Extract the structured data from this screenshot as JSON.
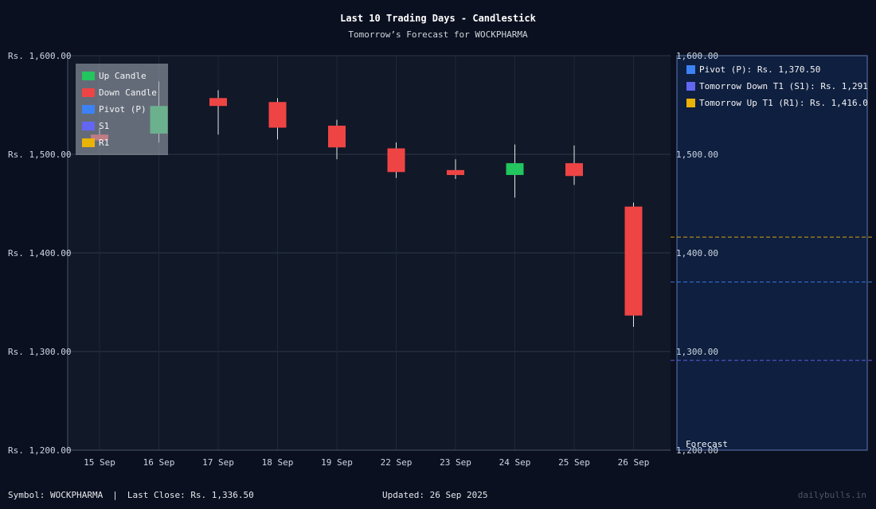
{
  "chart_data": {
    "type": "candlestick",
    "title": "Last 10 Trading Days - Candlestick",
    "subtitle": "Tomorrow’s Forecast for WOCKPHARMA",
    "ylim": [
      1200,
      1600
    ],
    "y_ticks": [
      1600,
      1500,
      1400,
      1300,
      1200
    ],
    "y_tick_labels": [
      "Rs. 1,600.00",
      "Rs. 1,500.00",
      "Rs. 1,400.00",
      "Rs. 1,300.00",
      "Rs. 1,200.00"
    ],
    "right_tick_labels": [
      "1,600.00",
      "1,500.00",
      "1,400.00",
      "1,300.00",
      "1,200.00"
    ],
    "categories": [
      "15 Sep",
      "16 Sep",
      "17 Sep",
      "18 Sep",
      "19 Sep",
      "22 Sep",
      "23 Sep",
      "24 Sep",
      "25 Sep",
      "26 Sep"
    ],
    "candles": [
      {
        "date": "15 Sep",
        "open": 1520,
        "high": 1526,
        "low": 1513,
        "close": 1514,
        "direction": "down"
      },
      {
        "date": "16 Sep",
        "open": 1521,
        "high": 1574,
        "low": 1512,
        "close": 1549,
        "direction": "up"
      },
      {
        "date": "17 Sep",
        "open": 1557,
        "high": 1565,
        "low": 1520,
        "close": 1549,
        "direction": "down"
      },
      {
        "date": "18 Sep",
        "open": 1553,
        "high": 1557,
        "low": 1515,
        "close": 1527,
        "direction": "down"
      },
      {
        "date": "19 Sep",
        "open": 1529,
        "high": 1535,
        "low": 1495,
        "close": 1507,
        "direction": "down"
      },
      {
        "date": "22 Sep",
        "open": 1506,
        "high": 1512,
        "low": 1476,
        "close": 1482,
        "direction": "down"
      },
      {
        "date": "23 Sep",
        "open": 1484,
        "high": 1495,
        "low": 1475,
        "close": 1479,
        "direction": "down"
      },
      {
        "date": "24 Sep",
        "open": 1479,
        "high": 1510,
        "low": 1456,
        "close": 1491,
        "direction": "up"
      },
      {
        "date": "25 Sep",
        "open": 1491,
        "high": 1509,
        "low": 1469,
        "close": 1478,
        "direction": "down"
      },
      {
        "date": "26 Sep",
        "open": 1447,
        "high": 1451,
        "low": 1325,
        "close": 1336.5,
        "direction": "down"
      }
    ],
    "forecast": {
      "label": "Forecast",
      "levels": [
        {
          "key": "pivot",
          "label": "Pivot (P): Rs. 1,370.50",
          "value": 1370.5,
          "color": "#3b82f6"
        },
        {
          "key": "s1",
          "label": "Tomorrow Down T1 (S1): Rs. 1,291",
          "value": 1291,
          "color": "#6366f1"
        },
        {
          "key": "r1",
          "label": "Tomorrow Up T1 (R1): Rs. 1,416.0",
          "value": 1416,
          "color": "#eab308"
        }
      ]
    },
    "legend": {
      "position": "top-left",
      "items": [
        {
          "label": "Up Candle",
          "color": "#22c55e"
        },
        {
          "label": "Down Candle",
          "color": "#ef4444"
        },
        {
          "label": "Pivot (P)",
          "color": "#3b82f6"
        },
        {
          "label": "S1",
          "color": "#6366f1"
        },
        {
          "label": "R1",
          "color": "#eab308"
        }
      ]
    },
    "colors": {
      "up": "#22c55e",
      "down": "#ef4444"
    },
    "grid": true
  },
  "footer": {
    "symbol": "Symbol: WOCKPHARMA",
    "separator": "|",
    "last_close": "Last Close: Rs. 1,336.50",
    "updated": "Updated: 26 Sep 2025",
    "brand": "dailybulls.in"
  }
}
